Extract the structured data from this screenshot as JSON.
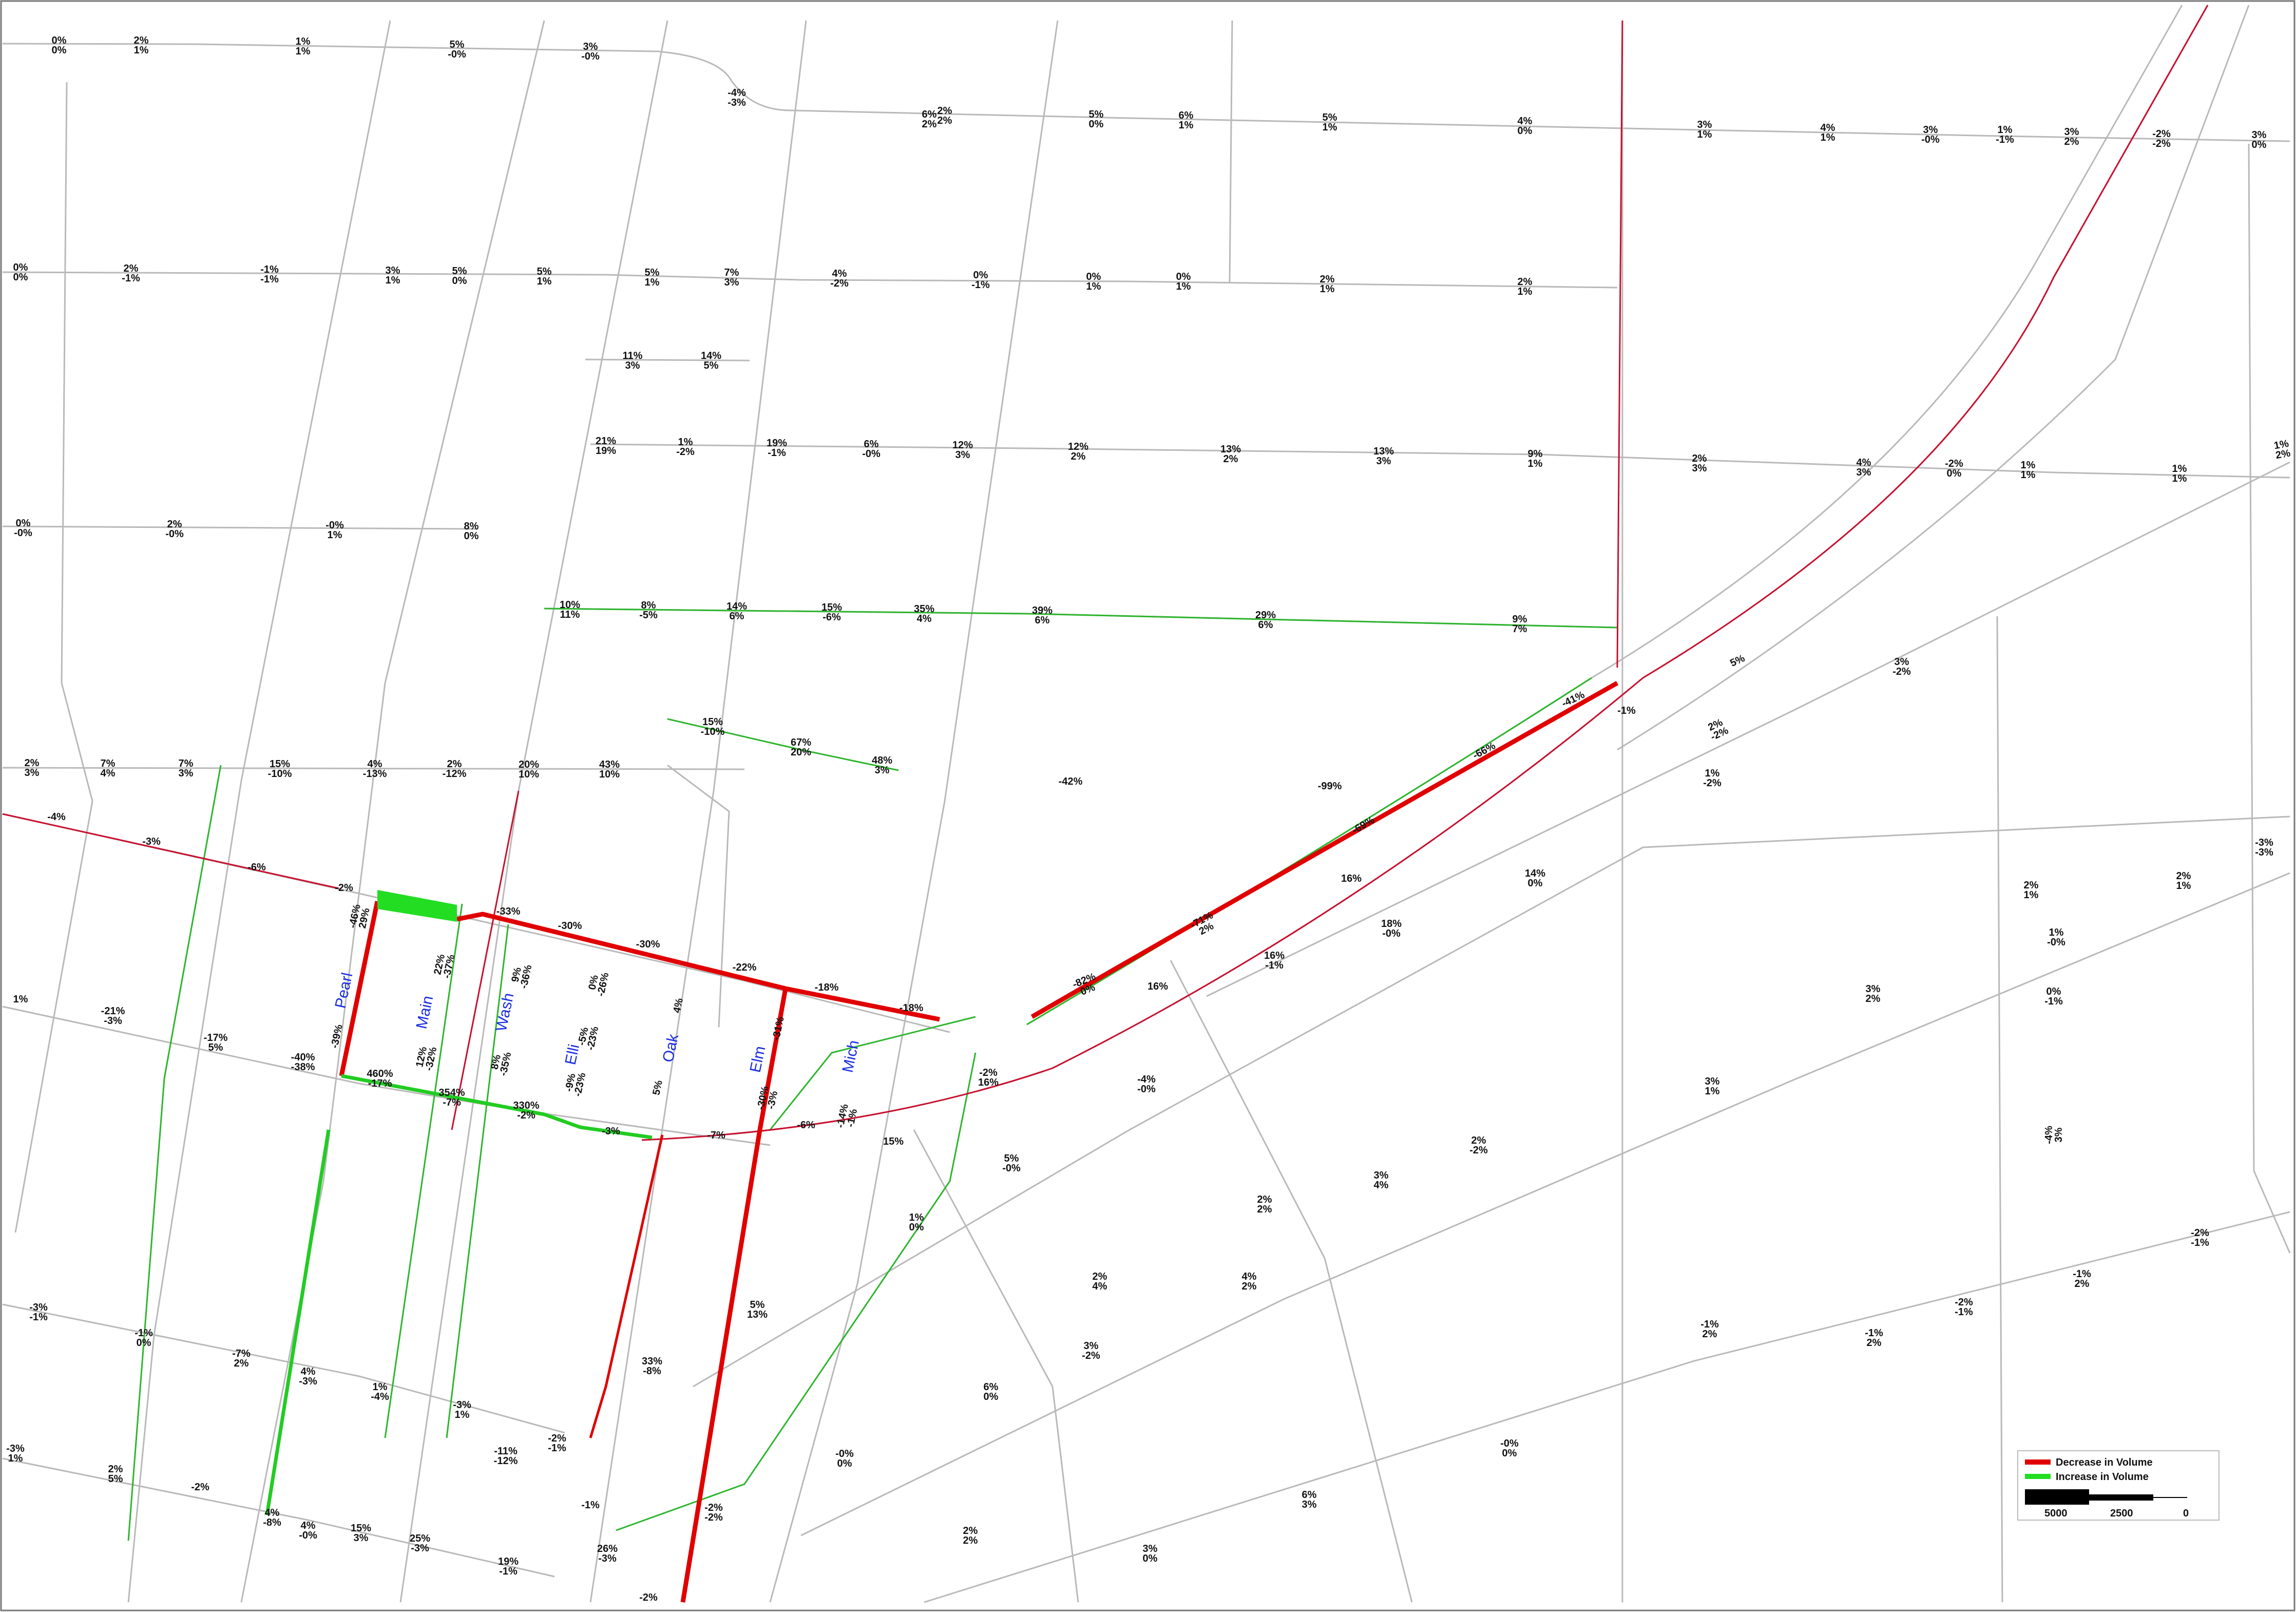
{
  "legend": {
    "items": [
      {
        "label": "Decrease in Volume",
        "color": "#e00000"
      },
      {
        "label": "Increase in Volume",
        "color": "#22dd22"
      }
    ],
    "scale_labels": [
      "5000",
      "2500",
      "0"
    ]
  },
  "streets": [
    "Pearl",
    "Main",
    "Wash",
    "Elli",
    "Oak",
    "Elm",
    "Mich"
  ],
  "link_labels": [
    [
      "0%",
      "0%"
    ],
    [
      "2%",
      "1%"
    ],
    [
      "1%",
      "1%"
    ],
    [
      "5%",
      "-0%"
    ],
    [
      "3%",
      "-0%"
    ],
    [
      "2%",
      "2%"
    ],
    [
      "-4%",
      "-3%"
    ],
    [
      "6%",
      "2%"
    ],
    [
      "5%",
      "0%"
    ],
    [
      "6%",
      "1%"
    ],
    [
      "5%",
      "1%"
    ],
    [
      "4%",
      "0%"
    ],
    [
      "3%",
      "1%"
    ],
    [
      "4%",
      "1%"
    ],
    [
      "3%",
      "-0%"
    ],
    [
      "1%",
      "-1%"
    ],
    [
      "3%",
      "2%"
    ],
    [
      "-2%",
      "-2%"
    ],
    [
      "3%",
      "0%"
    ],
    [
      "0%",
      "0%"
    ],
    [
      "2%",
      "-1%"
    ],
    [
      "-1%",
      "-1%"
    ],
    [
      "3%",
      "1%"
    ],
    [
      "5%",
      "0%"
    ],
    [
      "5%",
      "1%"
    ],
    [
      "5%",
      "1%"
    ],
    [
      "7%",
      "3%"
    ],
    [
      "4%",
      "-2%"
    ],
    [
      "0%",
      "-1%"
    ],
    [
      "0%",
      "1%"
    ],
    [
      "0%",
      "1%"
    ],
    [
      "2%",
      "1%"
    ],
    [
      "2%",
      "1%"
    ],
    [
      "11%",
      "3%"
    ],
    [
      "14%",
      "5%"
    ],
    [
      "21%",
      "19%"
    ],
    [
      "1%",
      "-2%"
    ],
    [
      "19%",
      "-1%"
    ],
    [
      "6%",
      "-0%"
    ],
    [
      "12%",
      "3%"
    ],
    [
      "12%",
      "2%"
    ],
    [
      "13%",
      "2%"
    ],
    [
      "13%",
      "3%"
    ],
    [
      "9%",
      "1%"
    ],
    [
      "2%",
      "3%"
    ],
    [
      "4%",
      "3%"
    ],
    [
      "-2%",
      "0%"
    ],
    [
      "1%",
      "1%"
    ],
    [
      "1%",
      "1%"
    ],
    [
      "1%",
      "2%"
    ],
    [
      "0%",
      "-0%"
    ],
    [
      "2%",
      "-0%"
    ],
    [
      "-0%",
      "1%"
    ],
    [
      "8%",
      "0%"
    ],
    [
      "10%",
      "11%"
    ],
    [
      "8%",
      "-5%"
    ],
    [
      "14%",
      "6%"
    ],
    [
      "15%",
      "-6%"
    ],
    [
      "35%",
      "4%"
    ],
    [
      "39%",
      "6%"
    ],
    [
      "29%",
      "6%"
    ],
    [
      "9%",
      "7%"
    ],
    [
      "2%",
      "3%"
    ],
    [
      "7%",
      "4%"
    ],
    [
      "7%",
      "3%"
    ],
    [
      "15%",
      "-10%"
    ],
    [
      "4%",
      "-13%"
    ],
    [
      "2%",
      "-12%"
    ],
    [
      "20%",
      "10%"
    ],
    [
      "43%",
      "10%"
    ],
    [
      "15%",
      "-10%"
    ],
    [
      "67%",
      "20%"
    ],
    [
      "48%",
      "3%"
    ],
    [
      "-42%",
      ""
    ],
    [
      "-99%",
      ""
    ],
    [
      "-41%",
      ""
    ],
    [
      "-66%",
      ""
    ],
    [
      "-69%",
      ""
    ],
    [
      "-71%",
      "2%"
    ],
    [
      "-82%",
      "0%"
    ],
    [
      "-4%",
      ""
    ],
    [
      "-3%",
      ""
    ],
    [
      "-6%",
      ""
    ],
    [
      "-2%",
      ""
    ],
    [
      "-33%",
      ""
    ],
    [
      "-30%",
      ""
    ],
    [
      "-30%",
      ""
    ],
    [
      "-22%",
      ""
    ],
    [
      "-18%",
      ""
    ],
    [
      "-18%",
      ""
    ],
    [
      "1%",
      ""
    ],
    [
      "-21%",
      "-3%"
    ],
    [
      "-17%",
      "5%"
    ],
    [
      "-40%",
      "-38%"
    ],
    [
      "460%",
      "-17%"
    ],
    [
      "354%",
      "-7%"
    ],
    [
      "330%",
      "-2%"
    ],
    [
      "-3%",
      ""
    ],
    [
      "-7%",
      ""
    ],
    [
      "-6%",
      ""
    ],
    [
      "-2%",
      "16%"
    ],
    [
      "2%",
      "-2%"
    ],
    [
      "5%",
      ""
    ],
    [
      "-1%",
      ""
    ],
    [
      "16%",
      ""
    ],
    [
      "16%",
      ""
    ],
    [
      "15%",
      ""
    ],
    [
      "16%",
      "-1%"
    ],
    [
      "18%",
      "-0%"
    ],
    [
      "14%",
      "0%"
    ],
    [
      "3%",
      "-2%"
    ],
    [
      "1%",
      "-2%"
    ],
    [
      "-3%",
      "-3%"
    ],
    [
      "-4%",
      "3%"
    ],
    [
      "-3%",
      "-1%"
    ],
    [
      "-1%",
      "0%"
    ],
    [
      "-7%",
      "2%"
    ],
    [
      "4%",
      "-3%"
    ],
    [
      "1%",
      "-4%"
    ],
    [
      "-3%",
      "1%"
    ],
    [
      "-11%",
      "-12%"
    ],
    [
      "-2%",
      "-1%"
    ],
    [
      "-1%",
      ""
    ],
    [
      "33%",
      "-8%"
    ],
    [
      "5%",
      "13%"
    ],
    [
      "-3%",
      "1%"
    ],
    [
      "2%",
      "5%"
    ],
    [
      "-2%",
      ""
    ],
    [
      "4%",
      "-8%"
    ],
    [
      "4%",
      "-0%"
    ],
    [
      "15%",
      "3%"
    ],
    [
      "25%",
      "-3%"
    ],
    [
      "19%",
      "-1%"
    ],
    [
      "26%",
      "-3%"
    ],
    [
      "-2%",
      "-2%"
    ],
    [
      "2%",
      "2%"
    ],
    [
      "3%",
      "0%"
    ],
    [
      "6%",
      "3%"
    ],
    [
      "2%",
      "4%"
    ],
    [
      "2%",
      "2%"
    ],
    [
      "3%",
      "4%"
    ],
    [
      "2%",
      "-2%"
    ],
    [
      "1%",
      "0%"
    ],
    [
      "5%",
      "-0%"
    ],
    [
      "-4%",
      "-0%"
    ],
    [
      "3%",
      "1%"
    ],
    [
      "3%",
      "2%"
    ],
    [
      "2%",
      "1%"
    ],
    [
      "2%",
      "1%"
    ],
    [
      "1%",
      "-0%"
    ],
    [
      "0%",
      "-1%"
    ],
    [
      "4%",
      "2%"
    ],
    [
      "3%",
      "-2%"
    ],
    [
      "-1%",
      "2%"
    ],
    [
      "-1%",
      "2%"
    ],
    [
      "-1%",
      "2%"
    ],
    [
      "-2%",
      "-1%"
    ],
    [
      "-2%",
      "-1%"
    ],
    [
      "-0%",
      "0%"
    ],
    [
      "-0%",
      "0%"
    ],
    [
      "6%",
      "0%"
    ],
    [
      "-2%",
      ""
    ],
    [
      "-46%",
      "29%"
    ],
    [
      "-39%",
      ""
    ],
    [
      "22%",
      "-37%"
    ],
    [
      "12%",
      "-32%"
    ],
    [
      "9%",
      "-36%"
    ],
    [
      "8%",
      "-35%"
    ],
    [
      "0%",
      "-26%"
    ],
    [
      "-5%",
      "-23%"
    ],
    [
      "-9%",
      "-23%"
    ],
    [
      "4%",
      ""
    ],
    [
      "5%",
      ""
    ],
    [
      "-31%",
      ""
    ],
    [
      "-30%",
      "-3%"
    ],
    [
      "-14%",
      "-1%"
    ]
  ]
}
